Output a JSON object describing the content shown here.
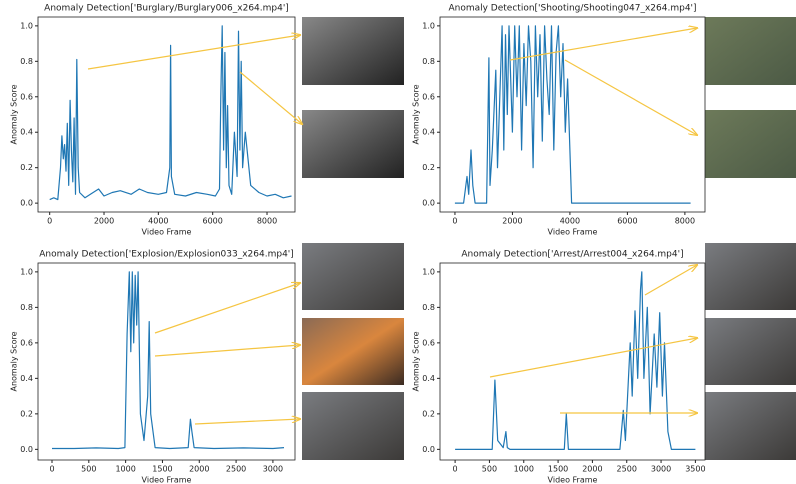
{
  "chart_data": [
    {
      "type": "line",
      "title": "Anomaly Detection['Burglary/Burglary006_x264.mp4']",
      "x_label": "Video Frame",
      "y_label": "Anomaly Score",
      "xlim": [
        -430,
        9030
      ],
      "ylim": [
        -0.05,
        1.05
      ],
      "xticks": [
        0,
        2000,
        4000,
        6000,
        8000
      ],
      "yticks": [
        {
          "value": 0,
          "label": "0.0"
        },
        {
          "value": 0.2,
          "label": "0.2"
        },
        {
          "value": 0.4,
          "label": "0.4"
        },
        {
          "value": 0.6,
          "label": "0.6"
        },
        {
          "value": 0.8,
          "label": "0.8"
        },
        {
          "value": 1.0,
          "label": "1.0"
        }
      ],
      "series": [
        {
          "color": "#1f77b4",
          "x": [
            0,
            150,
            300,
            400,
            450,
            500,
            550,
            600,
            650,
            700,
            750,
            800,
            850,
            900,
            950,
            1000,
            1050,
            1100,
            1300,
            1500,
            1800,
            2000,
            2300,
            2600,
            3000,
            3300,
            3600,
            4000,
            4300,
            4420,
            4450,
            4480,
            4600,
            5000,
            5400,
            5800,
            6100,
            6250,
            6300,
            6350,
            6400,
            6450,
            6500,
            6550,
            6600,
            6700,
            6800,
            6900,
            6950,
            7000,
            7050,
            7100,
            7200,
            7400,
            7700,
            8000,
            8300,
            8600,
            8900
          ],
          "values": [
            0.02,
            0.03,
            0.02,
            0.2,
            0.38,
            0.25,
            0.33,
            0.18,
            0.45,
            0.1,
            0.58,
            0.3,
            0.12,
            0.48,
            0.05,
            0.81,
            0.2,
            0.06,
            0.03,
            0.05,
            0.08,
            0.04,
            0.06,
            0.07,
            0.05,
            0.08,
            0.06,
            0.05,
            0.06,
            0.2,
            0.89,
            0.15,
            0.05,
            0.04,
            0.06,
            0.05,
            0.04,
            0.08,
            0.6,
            1.0,
            0.3,
            0.85,
            0.2,
            0.55,
            0.1,
            0.05,
            0.4,
            0.15,
            0.97,
            0.3,
            0.8,
            0.2,
            0.4,
            0.1,
            0.06,
            0.04,
            0.05,
            0.03,
            0.04
          ]
        }
      ]
    },
    {
      "type": "line",
      "title": "Anomaly Detection['Shooting/Shooting047_x264.mp4']",
      "x_label": "Video Frame",
      "y_label": "Anomaly Score",
      "xlim": [
        -520,
        8700
      ],
      "ylim": [
        -0.05,
        1.05
      ],
      "xticks": [
        0,
        2000,
        4000,
        6000,
        8000
      ],
      "yticks": [
        {
          "value": 0,
          "label": "0.0"
        },
        {
          "value": 0.2,
          "label": "0.2"
        },
        {
          "value": 0.4,
          "label": "0.4"
        },
        {
          "value": 0.6,
          "label": "0.6"
        },
        {
          "value": 0.8,
          "label": "0.8"
        },
        {
          "value": 1.0,
          "label": "1.0"
        }
      ],
      "series": [
        {
          "color": "#1f77b4",
          "x": [
            0,
            300,
            420,
            480,
            560,
            620,
            700,
            1100,
            1180,
            1220,
            1300,
            1420,
            1480,
            1560,
            1640,
            1700,
            1760,
            1820,
            1880,
            1940,
            2000,
            2080,
            2160,
            2240,
            2320,
            2400,
            2480,
            2560,
            2640,
            2720,
            2800,
            2880,
            2960,
            3040,
            3120,
            3200,
            3280,
            3360,
            3440,
            3520,
            3600,
            3680,
            3760,
            3840,
            3920,
            4000,
            4060,
            5000,
            6000,
            7000,
            8200
          ],
          "values": [
            0.0,
            0.0,
            0.15,
            0.05,
            0.3,
            0.1,
            0.0,
            0.0,
            0.82,
            0.1,
            0.3,
            0.75,
            0.2,
            0.6,
            1.0,
            0.3,
            0.95,
            0.5,
            1.0,
            0.7,
            0.4,
            1.0,
            0.6,
            1.0,
            0.3,
            0.9,
            0.55,
            1.0,
            0.8,
            0.2,
            1.0,
            0.6,
            0.95,
            0.35,
            1.0,
            0.7,
            0.5,
            1.0,
            0.3,
            0.85,
            1.0,
            0.6,
            0.9,
            0.4,
            0.7,
            0.3,
            0.0,
            0.0,
            0.0,
            0.0,
            0.0
          ]
        }
      ]
    },
    {
      "type": "line",
      "title": "Anomaly Detection['Explosion/Explosion033_x264.mp4']",
      "x_label": "Video Frame",
      "y_label": "Anomaly Score",
      "xlim": [
        -190,
        3300
      ],
      "ylim": [
        -0.06,
        1.05
      ],
      "xticks": [
        0,
        500,
        1000,
        1500,
        2000,
        2500,
        3000
      ],
      "yticks": [
        {
          "value": 0,
          "label": "0.0"
        },
        {
          "value": 0.2,
          "label": "0.2"
        },
        {
          "value": 0.4,
          "label": "0.4"
        },
        {
          "value": 0.6,
          "label": "0.6"
        },
        {
          "value": 0.8,
          "label": "0.8"
        },
        {
          "value": 1.0,
          "label": "1.0"
        }
      ],
      "series": [
        {
          "color": "#1f77b4",
          "x": [
            0,
            300,
            600,
            900,
            990,
            1020,
            1050,
            1070,
            1090,
            1110,
            1130,
            1150,
            1170,
            1200,
            1250,
            1300,
            1320,
            1340,
            1400,
            1600,
            1850,
            1880,
            1900,
            1930,
            2200,
            2600,
            3000,
            3150
          ],
          "values": [
            0.005,
            0.005,
            0.008,
            0.005,
            0.01,
            0.65,
            1.0,
            0.55,
            1.0,
            0.6,
            0.98,
            0.7,
            1.0,
            0.2,
            0.05,
            0.3,
            0.72,
            0.2,
            0.01,
            0.005,
            0.01,
            0.17,
            0.1,
            0.01,
            0.005,
            0.008,
            0.005,
            0.01
          ]
        }
      ]
    },
    {
      "type": "line",
      "title": "Anomaly Detection['Arrest/Arrest004_x264.mp4']",
      "x_label": "Video Frame",
      "y_label": "Anomaly Score",
      "xlim": [
        -220,
        3640
      ],
      "ylim": [
        -0.06,
        1.05
      ],
      "xticks": [
        0,
        500,
        1000,
        1500,
        2000,
        2500,
        3000,
        3500
      ],
      "yticks": [
        {
          "value": 0,
          "label": "0.0"
        },
        {
          "value": 0.2,
          "label": "0.2"
        },
        {
          "value": 0.4,
          "label": "0.4"
        },
        {
          "value": 0.6,
          "label": "0.6"
        },
        {
          "value": 0.8,
          "label": "0.8"
        },
        {
          "value": 1.0,
          "label": "1.0"
        }
      ],
      "series": [
        {
          "color": "#1f77b4",
          "x": [
            0,
            540,
            580,
            620,
            700,
            740,
            760,
            800,
            1590,
            1620,
            1650,
            2400,
            2450,
            2480,
            2550,
            2580,
            2620,
            2660,
            2700,
            2720,
            2750,
            2800,
            2840,
            2900,
            2940,
            2980,
            3020,
            3050,
            3100,
            3150,
            3500
          ],
          "values": [
            0.0,
            0.0,
            0.39,
            0.05,
            0.01,
            0.1,
            0.01,
            0.0,
            0.0,
            0.2,
            0.0,
            0.0,
            0.22,
            0.05,
            0.6,
            0.3,
            0.78,
            0.4,
            0.9,
            1.0,
            0.4,
            0.8,
            0.2,
            0.65,
            0.35,
            0.77,
            0.3,
            0.6,
            0.1,
            0.0,
            0.0
          ]
        }
      ]
    }
  ]
}
